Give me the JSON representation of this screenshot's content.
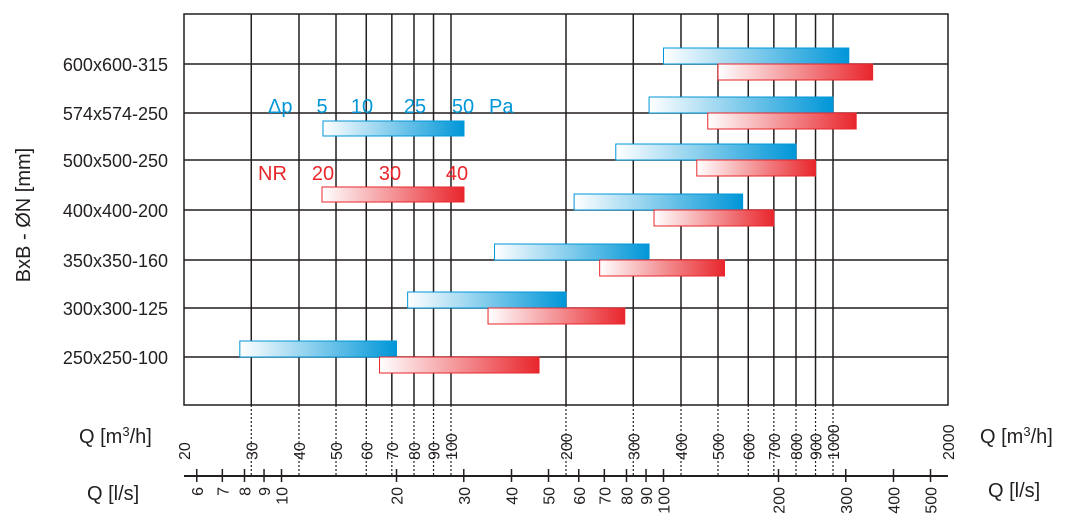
{
  "chart_data": {
    "type": "bar",
    "subtype": "floating-range-log",
    "ylabel": "BxB - ØN [mm]",
    "x_primary": {
      "label": "Q [m",
      "label_sup": "3",
      "label_tail": "/h]",
      "scale": "log",
      "range": [
        20,
        2000
      ],
      "ticks": [
        "20",
        "30",
        "40",
        "50",
        "60",
        "70",
        "80",
        "90",
        "100",
        "200",
        "300",
        "400",
        "500",
        "600",
        "700",
        "800",
        "900",
        "1000",
        "2000"
      ]
    },
    "x_secondary": {
      "label": "Q [l/s]",
      "ticks": [
        "6",
        "7",
        "8",
        "9",
        "10",
        "20",
        "30",
        "40",
        "50",
        "60",
        "70",
        "80",
        "90",
        "100",
        "200",
        "300",
        "400",
        "500"
      ]
    },
    "grid_lines_at": [
      30,
      40,
      50,
      60,
      70,
      80,
      90,
      100,
      200,
      300,
      400,
      500,
      600,
      700,
      800,
      900,
      1000
    ],
    "categories": [
      "600x600-315",
      "574x574-250",
      "500x500-250",
      "400x400-200",
      "350x350-160",
      "300x300-125",
      "250x250-100"
    ],
    "series": [
      {
        "name": "Δp",
        "color": "#0096d8",
        "ranges": [
          [
            360,
            1100
          ],
          [
            330,
            1000
          ],
          [
            270,
            800
          ],
          [
            210,
            580
          ],
          [
            130,
            330
          ],
          [
            77,
            200
          ],
          [
            28,
            72
          ]
        ]
      },
      {
        "name": "NR",
        "color": "#e8262c",
        "ranges": [
          [
            500,
            1270
          ],
          [
            470,
            1150
          ],
          [
            440,
            900
          ],
          [
            340,
            700
          ],
          [
            245,
            520
          ],
          [
            125,
            285
          ],
          [
            65,
            170
          ]
        ]
      }
    ],
    "legend": {
      "dp": {
        "symbol": "Δp",
        "ticks": [
          "5",
          "10",
          "25",
          "50"
        ],
        "unit": "Pa"
      },
      "nr": {
        "symbol": "NR",
        "ticks": [
          "20",
          "30",
          "40"
        ]
      }
    }
  }
}
